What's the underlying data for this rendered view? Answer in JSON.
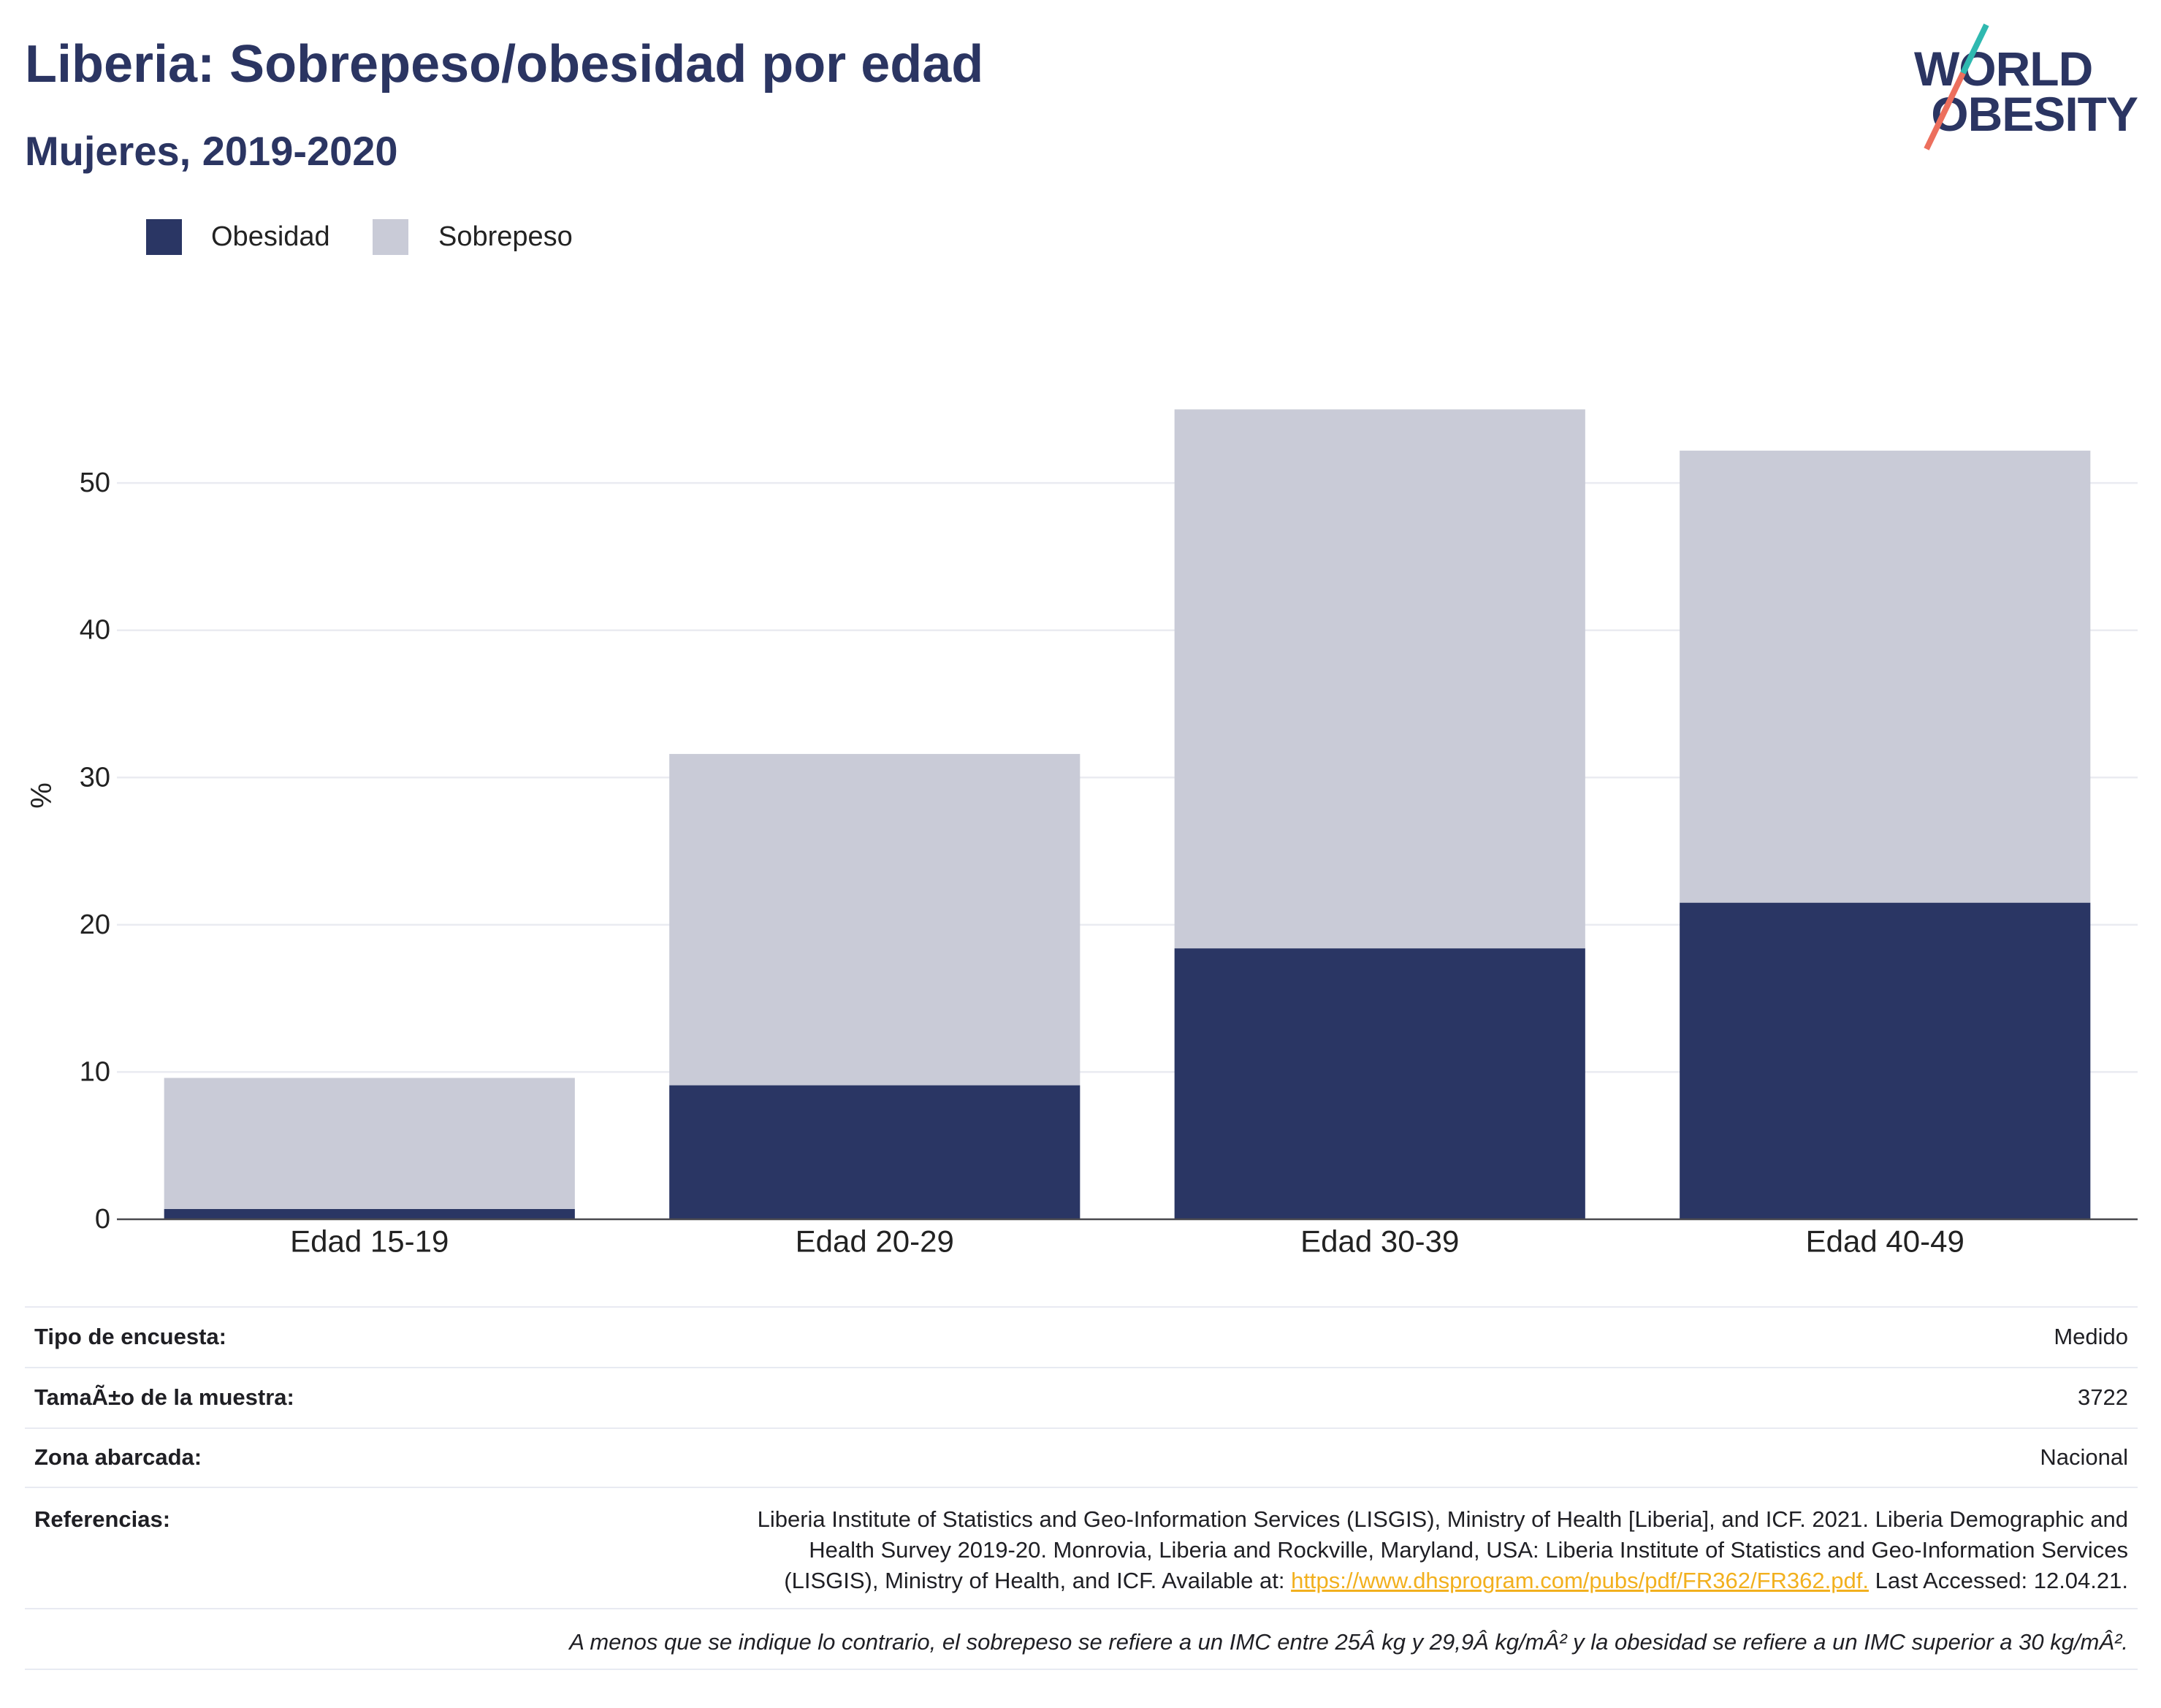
{
  "title": "Liberia: Sobrepeso/obesidad por edad",
  "subtitle": "Mujeres, 2019-2020",
  "logo": {
    "line1": "WORLD",
    "line2": "OBESITY",
    "colors": {
      "text": "#2b3562",
      "slash_top": "#2fb9b0",
      "slash_bottom": "#ec6f5d"
    }
  },
  "chart_data": {
    "type": "bar",
    "stacked": true,
    "categories": [
      "Edad 15-19",
      "Edad 20-29",
      "Edad 30-39",
      "Edad 40-49"
    ],
    "series": [
      {
        "name": "Obesidad",
        "color": "#2a3664",
        "values": [
          0.7,
          9.1,
          18.4,
          21.5
        ]
      },
      {
        "name": "Sobrepeso",
        "color": "#c9cbd7",
        "values": [
          8.9,
          22.5,
          36.6,
          30.7
        ]
      }
    ],
    "xlabel": "",
    "ylabel": "%",
    "yticks": [
      0,
      10,
      20,
      30,
      40,
      50
    ],
    "ylim": [
      0,
      57.5
    ],
    "grid": true,
    "legend_position": "top-left"
  },
  "details": {
    "rows": [
      {
        "label": "Tipo de encuesta:",
        "value": "Medido"
      },
      {
        "label": "TamaÃ±o de la muestra:",
        "value": "3722"
      },
      {
        "label": "Zona abarcada:",
        "value": "Nacional"
      }
    ],
    "references": {
      "label": "Referencias:",
      "lines": [
        "Liberia Institute of Statistics and Geo-Information Services (LISGIS), Ministry of Health [Liberia], and ICF. 2021. Liberia Demographic and",
        "Health Survey 2019-20. Monrovia, Liberia and Rockville, Maryland, USA: Liberia Institute of Statistics and Geo-Information Services"
      ],
      "last_line_before_link": "(LISGIS), Ministry of Health, and ICF. Available at:",
      "link": "https://www.dhsprogram.com/pubs/pdf/FR362/FR362.pdf.",
      "last_line_after_link": "Last Accessed: 12.04.21.",
      "link_color": "#f2b01e"
    },
    "footnote": "A menos que se indique lo contrario, el sobrepeso se refiere a un IMC entre 25Â kg y 29,9Â kg/mÂ² y la obesidad se refiere a un IMC superior a 30 kg/mÂ²."
  }
}
